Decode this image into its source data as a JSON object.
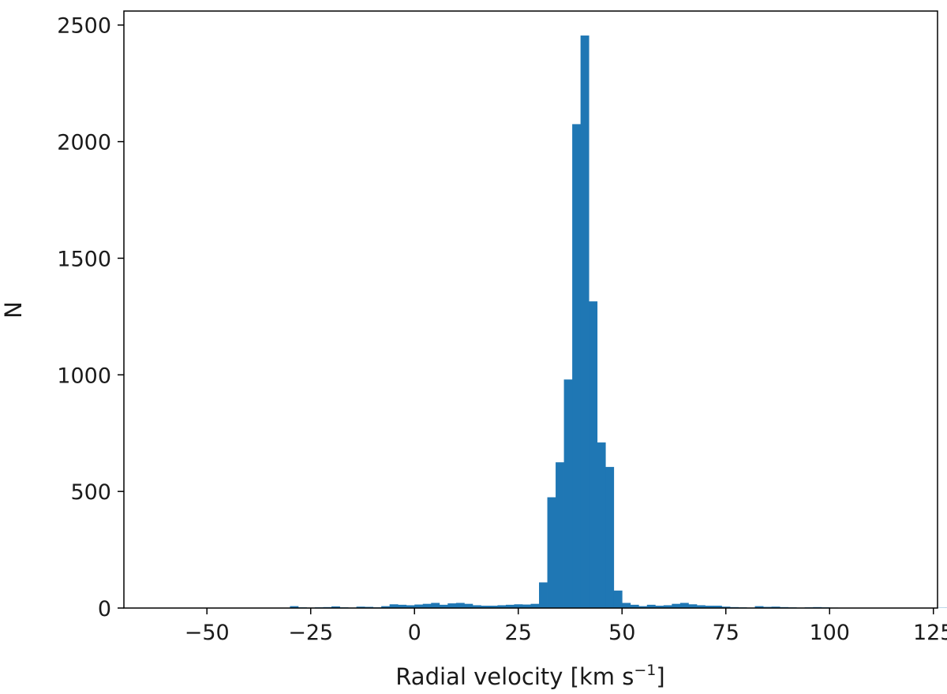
{
  "chart_data": {
    "type": "bar",
    "subtype": "histogram",
    "title": "",
    "xlabel": "Radial velocity [km s",
    "xlabel_superscript": "−1",
    "xlabel_suffix": "]",
    "ylabel": "N",
    "xlim": [
      -70,
      126
    ],
    "ylim": [
      0,
      2560
    ],
    "bar_color": "#1f77b4",
    "grid": false,
    "bin_width": 2,
    "bin_start": -30,
    "x_ticks": [
      {
        "value": -50,
        "label": "−50"
      },
      {
        "value": -25,
        "label": "−25"
      },
      {
        "value": 0,
        "label": "0"
      },
      {
        "value": 25,
        "label": "25"
      },
      {
        "value": 50,
        "label": "50"
      },
      {
        "value": 75,
        "label": "75"
      },
      {
        "value": 100,
        "label": "100"
      },
      {
        "value": 125,
        "label": "125"
      }
    ],
    "y_ticks": [
      {
        "value": 0,
        "label": "0"
      },
      {
        "value": 500,
        "label": "500"
      },
      {
        "value": 1000,
        "label": "1000"
      },
      {
        "value": 1500,
        "label": "1500"
      },
      {
        "value": 2000,
        "label": "2000"
      },
      {
        "value": 2500,
        "label": "2500"
      }
    ],
    "counts": [
      8,
      3,
      2,
      3,
      4,
      7,
      3,
      2,
      6,
      5,
      3,
      8,
      16,
      14,
      12,
      15,
      18,
      22,
      14,
      20,
      22,
      18,
      12,
      10,
      10,
      12,
      14,
      16,
      15,
      18,
      110,
      475,
      625,
      980,
      2075,
      2455,
      1315,
      710,
      605,
      75,
      22,
      14,
      8,
      14,
      10,
      12,
      18,
      22,
      16,
      12,
      10,
      10,
      6,
      4,
      3,
      2,
      8,
      5,
      6,
      4,
      3,
      2,
      3,
      4,
      3,
      2,
      1,
      1,
      1,
      1,
      1,
      1,
      1,
      1,
      1,
      1,
      1,
      1,
      1,
      1,
      1,
      1,
      1,
      1,
      1,
      1,
      1
    ]
  }
}
